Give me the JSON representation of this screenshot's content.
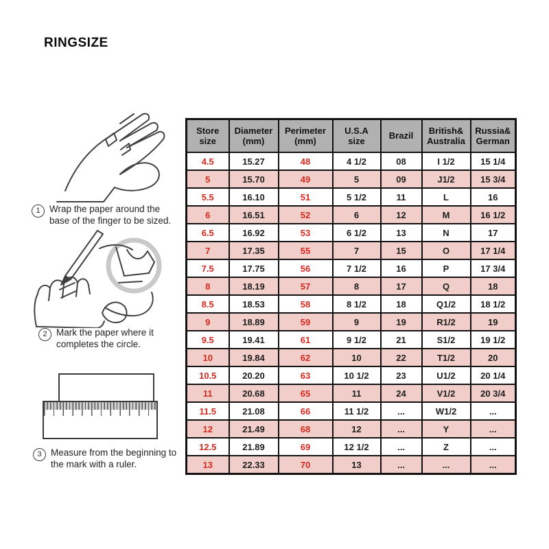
{
  "title": "RINGSIZE",
  "steps": [
    {
      "num": "1",
      "text": "Wrap the paper around the\nbase of the finger to be sized."
    },
    {
      "num": "2",
      "text": "Mark the paper where it\ncompletes the circle."
    },
    {
      "num": "3",
      "text": "Measure from the beginning to\nthe mark with a ruler."
    }
  ],
  "illustrations": [
    "hand-with-paper-strip-around-finger",
    "hand-marking-paper-with-pen-and-magnified-view",
    "ruler-measuring-paper-strip"
  ],
  "table": {
    "headers": [
      "Store\nsize",
      "Diameter\n(mm)",
      "Perimeter\n(mm)",
      "U.S.A\nsize",
      "Brazil",
      "British&\nAustralia",
      "Russia&\nGerman"
    ],
    "red_columns": [
      0,
      2
    ],
    "rows": [
      [
        "4.5",
        "15.27",
        "48",
        "4 1/2",
        "08",
        "I 1/2",
        "15 1/4"
      ],
      [
        "5",
        "15.70",
        "49",
        "5",
        "09",
        "J1/2",
        "15 3/4"
      ],
      [
        "5.5",
        "16.10",
        "51",
        "5 1/2",
        "11",
        "L",
        "16"
      ],
      [
        "6",
        "16.51",
        "52",
        "6",
        "12",
        "M",
        "16 1/2"
      ],
      [
        "6.5",
        "16.92",
        "53",
        "6 1/2",
        "13",
        "N",
        "17"
      ],
      [
        "7",
        "17.35",
        "55",
        "7",
        "15",
        "O",
        "17 1/4"
      ],
      [
        "7.5",
        "17.75",
        "56",
        "7 1/2",
        "16",
        "P",
        "17 3/4"
      ],
      [
        "8",
        "18.19",
        "57",
        "8",
        "17",
        "Q",
        "18"
      ],
      [
        "8.5",
        "18.53",
        "58",
        "8 1/2",
        "18",
        "Q1/2",
        "18 1/2"
      ],
      [
        "9",
        "18.89",
        "59",
        "9",
        "19",
        "R1/2",
        "19"
      ],
      [
        "9.5",
        "19.41",
        "61",
        "9 1/2",
        "21",
        "S1/2",
        "19 1/2"
      ],
      [
        "10",
        "19.84",
        "62",
        "10",
        "22",
        "T1/2",
        "20"
      ],
      [
        "10.5",
        "20.20",
        "63",
        "10 1/2",
        "23",
        "U1/2",
        "20 1/4"
      ],
      [
        "11",
        "20.68",
        "65",
        "11",
        "24",
        "V1/2",
        "20 3/4"
      ],
      [
        "11.5",
        "21.08",
        "66",
        "11 1/2",
        "...",
        "W1/2",
        "..."
      ],
      [
        "12",
        "21.49",
        "68",
        "12",
        "...",
        "Y",
        "..."
      ],
      [
        "12.5",
        "21.89",
        "69",
        "12 1/2",
        "...",
        "Z",
        "..."
      ],
      [
        "13",
        "22.33",
        "70",
        "13",
        "...",
        "...",
        "..."
      ]
    ]
  },
  "colors": {
    "header_bg": "#b1b1b1",
    "row_pink": "#f1cec9",
    "row_white": "#ffffff",
    "accent_red": "#d3281e",
    "border": "#111111",
    "line_art": "#404040",
    "magnifier_ring": "#c9c9c9"
  }
}
